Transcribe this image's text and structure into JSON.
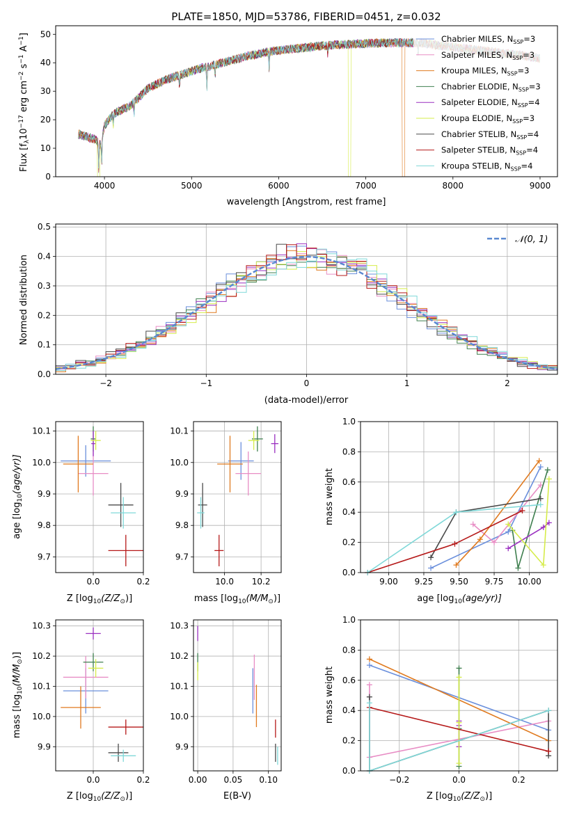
{
  "colors": {
    "chab_miles": "#6a8fdc",
    "salp_miles": "#e88dc5",
    "krou_miles": "#e07a1f",
    "chab_elodie": "#3f7f4f",
    "salp_elodie": "#9a2fc0",
    "krou_elodie": "#d6ec4a",
    "chab_stelib": "#4a4a4a",
    "salp_stelib": "#b51818",
    "krou_stelib": "#7fd8d8",
    "gauss": "#5a88d0",
    "grid": "#b0b0b0"
  },
  "chart_data": [
    {
      "id": "spectrum",
      "type": "line",
      "title": "PLATE=1850, MJD=53786, FIBERID=0451, z=0.032",
      "xlabel": "wavelength [Angstrom, rest frame]",
      "ylabel": "Flux [f",
      "ylabel_sub": "λ",
      "ylabel_rest": "10",
      "ylabel_sup1": "−17",
      "ylabel_tail": " erg cm",
      "ylabel_sup2": "−2",
      "ylabel_tail2": " s",
      "ylabel_sup3": "−1",
      "ylabel_tail3": " A",
      "ylabel_sup4": "−1",
      "ylabel_end": "]",
      "xlim": [
        3440,
        9200
      ],
      "ylim": [
        0,
        53
      ],
      "xticks": [
        4000,
        5000,
        6000,
        7000,
        8000,
        9000
      ],
      "yticks": [
        0,
        10,
        20,
        30,
        40,
        50
      ],
      "grid": false,
      "legend_position": "upper-right",
      "continuum": [
        [
          3700,
          15
        ],
        [
          3900,
          13
        ],
        [
          3960,
          11
        ],
        [
          4000,
          18
        ],
        [
          4100,
          22
        ],
        [
          4300,
          25
        ],
        [
          4500,
          31
        ],
        [
          4700,
          34
        ],
        [
          4900,
          36
        ],
        [
          5100,
          38
        ],
        [
          5300,
          39.5
        ],
        [
          5600,
          42
        ],
        [
          5900,
          44
        ],
        [
          6200,
          45
        ],
        [
          6500,
          46
        ],
        [
          6800,
          46.5
        ],
        [
          7200,
          47
        ],
        [
          7600,
          47
        ],
        [
          8000,
          45.5
        ],
        [
          8400,
          44
        ],
        [
          8800,
          42.5
        ],
        [
          9000,
          41.5
        ]
      ],
      "series": [
        {
          "name": "Chabrier MILES, N",
          "sub": "SSP",
          "n": "=3",
          "color_key": "chab_miles"
        },
        {
          "name": "Salpeter MILES, N",
          "sub": "SSP",
          "n": "=3",
          "color_key": "salp_miles"
        },
        {
          "name": "Kroupa MILES, N",
          "sub": "SSP",
          "n": "=3",
          "color_key": "krou_miles"
        },
        {
          "name": "Chabrier ELODIE, N",
          "sub": "SSP",
          "n": "=3",
          "color_key": "chab_elodie"
        },
        {
          "name": "Salpeter ELODIE, N",
          "sub": "SSP",
          "n": "=4",
          "color_key": "salp_elodie"
        },
        {
          "name": "Kroupa ELODIE, N",
          "sub": "SSP",
          "n": "=3",
          "color_key": "krou_elodie"
        },
        {
          "name": "Chabrier STELIB, N",
          "sub": "SSP",
          "n": "=4",
          "color_key": "chab_stelib"
        },
        {
          "name": "Salpeter STELIB, N",
          "sub": "SSP",
          "n": "=4",
          "color_key": "salp_stelib"
        },
        {
          "name": "Kroupa STELIB, N",
          "sub": "SSP",
          "n": "=4",
          "color_key": "krou_stelib"
        }
      ],
      "dropouts": [
        {
          "color_key": "krou_elodie",
          "x": 6800
        },
        {
          "color_key": "krou_miles",
          "x": 7420
        },
        {
          "color_key": "krou_elodie",
          "x": 3920
        }
      ]
    },
    {
      "id": "residuals",
      "type": "histogram",
      "xlabel": "(data-model)/error",
      "ylabel": "Normed distribution",
      "xlim": [
        -2.5,
        2.5
      ],
      "ylim": [
        0,
        0.51
      ],
      "xticks": [
        -2,
        -1,
        0,
        1,
        2
      ],
      "xticklabels": [
        "−2",
        "−1",
        "0",
        "1",
        "2"
      ],
      "yticks": [
        0.0,
        0.1,
        0.2,
        0.3,
        0.4,
        0.5
      ],
      "yticklabels": [
        "0.0",
        "0.1",
        "0.2",
        "0.3",
        "0.4",
        "0.5"
      ],
      "grid": true,
      "bin_width": 0.1,
      "legend_label": "𝒩(0, 1)",
      "legend_position": "upper-right",
      "gauss_color_key": "gauss"
    },
    {
      "id": "age_vs_Z",
      "type": "errorbar",
      "xlabel": "Z [log",
      "xlabel_sub": "10",
      "xlabel_rest": "(Z/Z",
      "xlabel_sub2": "⊙",
      "xlabel_end": ")]",
      "ylabel": "age  [log",
      "ylabel_sub": "10",
      "ylabel_rest": "(age/yr)]",
      "xlim": [
        -0.15,
        0.2
      ],
      "ylim": [
        9.65,
        10.13
      ],
      "xticks": [
        0.0,
        0.2
      ],
      "xticklabels": [
        "0.0",
        "0.2"
      ],
      "yticks": [
        9.7,
        9.8,
        9.9,
        10.0,
        10.1
      ],
      "yticklabels": [
        "9.7",
        "9.8",
        "9.9",
        "10.0",
        "10.1"
      ],
      "grid": true,
      "points": [
        {
          "color_key": "chab_miles",
          "x": -0.03,
          "xerr": 0.1,
          "y": 10.005,
          "yerr": 0.05
        },
        {
          "color_key": "salp_miles",
          "x": 0.0,
          "xerr": 0.06,
          "y": 9.965,
          "yerr": 0.07
        },
        {
          "color_key": "krou_miles",
          "x": -0.06,
          "xerr": 0.06,
          "y": 9.995,
          "yerr": 0.09
        },
        {
          "color_key": "chab_elodie",
          "x": 0.0,
          "xerr": 0.01,
          "y": 10.075,
          "yerr": 0.04
        },
        {
          "color_key": "salp_elodie",
          "x": 0.0,
          "xerr": 0.008,
          "y": 10.06,
          "yerr": 0.04
        },
        {
          "color_key": "krou_elodie",
          "x": 0.01,
          "xerr": 0.02,
          "y": 10.07,
          "yerr": 0.03
        },
        {
          "color_key": "chab_stelib",
          "x": 0.11,
          "xerr": 0.05,
          "y": 9.865,
          "yerr": 0.07
        },
        {
          "color_key": "salp_stelib",
          "x": 0.13,
          "xerr": 0.07,
          "y": 9.72,
          "yerr": 0.05
        },
        {
          "color_key": "krou_stelib",
          "x": 0.12,
          "xerr": 0.05,
          "y": 9.84,
          "yerr": 0.05
        }
      ]
    },
    {
      "id": "age_vs_mass",
      "type": "errorbar",
      "xlabel": "mass [log",
      "xlabel_sub": "10",
      "xlabel_rest": "(M/M",
      "xlabel_sub2": "⊙",
      "xlabel_end": ")]",
      "xlim": [
        9.83,
        10.31
      ],
      "ylim": [
        9.65,
        10.13
      ],
      "xticks": [
        10.0,
        10.2
      ],
      "xticklabels": [
        "10.0",
        "10.2"
      ],
      "yticks": [
        9.7,
        9.8,
        9.9,
        10.0,
        10.1
      ],
      "yticklabels": [
        "9.7",
        "9.8",
        "9.9",
        "10.0",
        "10.1"
      ],
      "grid": true,
      "points": [
        {
          "color_key": "chab_miles",
          "x": 10.09,
          "xerr": 0.07,
          "y": 10.005,
          "yerr": 0.06
        },
        {
          "color_key": "salp_miles",
          "x": 10.13,
          "xerr": 0.07,
          "y": 9.965,
          "yerr": 0.07
        },
        {
          "color_key": "krou_miles",
          "x": 10.03,
          "xerr": 0.07,
          "y": 9.995,
          "yerr": 0.09
        },
        {
          "color_key": "chab_elodie",
          "x": 10.18,
          "xerr": 0.03,
          "y": 10.075,
          "yerr": 0.04
        },
        {
          "color_key": "salp_elodie",
          "x": 10.275,
          "xerr": 0.02,
          "y": 10.06,
          "yerr": 0.03
        },
        {
          "color_key": "krou_elodie",
          "x": 10.16,
          "xerr": 0.03,
          "y": 10.07,
          "yerr": 0.03
        },
        {
          "color_key": "chab_stelib",
          "x": 9.88,
          "xerr": 0.025,
          "y": 9.865,
          "yerr": 0.07
        },
        {
          "color_key": "salp_stelib",
          "x": 9.97,
          "xerr": 0.025,
          "y": 9.72,
          "yerr": 0.05
        },
        {
          "color_key": "krou_stelib",
          "x": 9.87,
          "xerr": 0.02,
          "y": 9.84,
          "yerr": 0.05
        }
      ]
    },
    {
      "id": "massweight_vs_age",
      "type": "line",
      "xlabel": "age  [log",
      "xlabel_sub": "10",
      "xlabel_rest": "(age/yr)]",
      "ylabel": "mass weight",
      "xlim": [
        8.8,
        10.2
      ],
      "ylim": [
        0,
        1.0
      ],
      "xticks": [
        9.0,
        9.25,
        9.5,
        9.75,
        10.0
      ],
      "xticklabels": [
        "9.00",
        "9.25",
        "9.50",
        "9.75",
        "10.00"
      ],
      "yticks": [
        0.0,
        0.2,
        0.4,
        0.6,
        0.8,
        1.0
      ],
      "yticklabels": [
        "0.0",
        "0.2",
        "0.4",
        "0.6",
        "0.8",
        "1.0"
      ],
      "grid": true,
      "series": [
        {
          "color_key": "chab_miles",
          "x": [
            9.3,
            9.85,
            10.08
          ],
          "y": [
            0.03,
            0.27,
            0.7
          ]
        },
        {
          "color_key": "salp_miles",
          "x": [
            9.6,
            9.75,
            10.08
          ],
          "y": [
            0.32,
            0.2,
            0.58
          ]
        },
        {
          "color_key": "krou_miles",
          "x": [
            9.48,
            9.65,
            10.07
          ],
          "y": [
            0.05,
            0.22,
            0.74
          ]
        },
        {
          "color_key": "chab_elodie",
          "x": [
            9.88,
            9.92,
            10.13
          ],
          "y": [
            0.28,
            0.03,
            0.68
          ]
        },
        {
          "color_key": "salp_elodie",
          "x": [
            9.85,
            10.1,
            10.14
          ],
          "y": [
            0.16,
            0.3,
            0.33
          ]
        },
        {
          "color_key": "krou_elodie",
          "x": [
            9.85,
            10.1,
            10.14
          ],
          "y": [
            0.32,
            0.05,
            0.62
          ]
        },
        {
          "color_key": "chab_stelib",
          "x": [
            9.3,
            9.48,
            10.08
          ],
          "y": [
            0.1,
            0.4,
            0.49
          ]
        },
        {
          "color_key": "salp_stelib",
          "x": [
            8.85,
            9.47,
            9.95
          ],
          "y": [
            0.0,
            0.19,
            0.41
          ]
        },
        {
          "color_key": "krou_stelib",
          "x": [
            8.85,
            9.48,
            10.08
          ],
          "y": [
            0.0,
            0.4,
            0.45
          ]
        }
      ]
    },
    {
      "id": "mass_vs_Z",
      "type": "errorbar",
      "xlabel": "Z [log",
      "xlabel_sub": "10",
      "xlabel_rest": "(Z/Z",
      "xlabel_sub2": "⊙",
      "xlabel_end": ")]",
      "ylabel": "mass [log",
      "ylabel_sub": "10",
      "ylabel_rest": "(M/M",
      "ylabel_sub2": "⊙",
      "ylabel_end": ")]",
      "xlim": [
        -0.15,
        0.2
      ],
      "ylim": [
        9.82,
        10.32
      ],
      "xticks": [
        0.0,
        0.2
      ],
      "xticklabels": [
        "0.0",
        "0.2"
      ],
      "yticks": [
        9.9,
        10.0,
        10.1,
        10.2,
        10.3
      ],
      "yticklabels": [
        "9.9",
        "10.0",
        "10.1",
        "10.2",
        "10.3"
      ],
      "grid": true,
      "points": [
        {
          "color_key": "chab_miles",
          "x": -0.03,
          "xerr": 0.09,
          "y": 10.085,
          "yerr": 0.075
        },
        {
          "color_key": "salp_miles",
          "x": -0.03,
          "xerr": 0.09,
          "y": 10.13,
          "yerr": 0.07
        },
        {
          "color_key": "krou_miles",
          "x": -0.05,
          "xerr": 0.08,
          "y": 10.03,
          "yerr": 0.07
        },
        {
          "color_key": "chab_elodie",
          "x": 0.0,
          "xerr": 0.04,
          "y": 10.18,
          "yerr": 0.03
        },
        {
          "color_key": "salp_elodie",
          "x": 0.0,
          "xerr": 0.03,
          "y": 10.275,
          "yerr": 0.02
        },
        {
          "color_key": "krou_elodie",
          "x": 0.01,
          "xerr": 0.03,
          "y": 10.16,
          "yerr": 0.03
        },
        {
          "color_key": "chab_stelib",
          "x": 0.1,
          "xerr": 0.04,
          "y": 9.88,
          "yerr": 0.03
        },
        {
          "color_key": "salp_stelib",
          "x": 0.13,
          "xerr": 0.07,
          "y": 9.965,
          "yerr": 0.025
        },
        {
          "color_key": "krou_stelib",
          "x": 0.12,
          "xerr": 0.05,
          "y": 9.87,
          "yerr": 0.02
        }
      ]
    },
    {
      "id": "mass_vs_ebv",
      "type": "errorbar",
      "xlabel": "E(B-V)",
      "xlim": [
        -0.006,
        0.118
      ],
      "ylim": [
        9.82,
        10.32
      ],
      "xticks": [
        0.0,
        0.05,
        0.1
      ],
      "xticklabels": [
        "0.00",
        "0.05",
        "0.10"
      ],
      "yticks": [
        9.9,
        10.0,
        10.1,
        10.2,
        10.3
      ],
      "yticklabels": [
        "9.9",
        "10.0",
        "10.1",
        "10.2",
        "10.3"
      ],
      "grid": true,
      "points": [
        {
          "color_key": "chab_miles",
          "x": 0.078,
          "xerr": 0.0,
          "y": 10.085,
          "yerr": 0.075
        },
        {
          "color_key": "salp_miles",
          "x": 0.08,
          "xerr": 0.0,
          "y": 10.13,
          "yerr": 0.075
        },
        {
          "color_key": "krou_miles",
          "x": 0.083,
          "xerr": 0.0,
          "y": 10.035,
          "yerr": 0.07
        },
        {
          "color_key": "chab_elodie",
          "x": 0.0,
          "xerr": 0.0,
          "y": 10.18,
          "yerr": 0.03
        },
        {
          "color_key": "salp_elodie",
          "x": 0.0,
          "xerr": 0.0,
          "y": 10.275,
          "yerr": 0.025
        },
        {
          "color_key": "krou_elodie",
          "x": 0.0,
          "xerr": 0.0,
          "y": 10.15,
          "yerr": 0.03
        },
        {
          "color_key": "chab_stelib",
          "x": 0.11,
          "xerr": 0.0,
          "y": 9.88,
          "yerr": 0.03
        },
        {
          "color_key": "salp_stelib",
          "x": 0.11,
          "xerr": 0.0,
          "y": 9.96,
          "yerr": 0.03
        },
        {
          "color_key": "krou_stelib",
          "x": 0.113,
          "xerr": 0.0,
          "y": 9.87,
          "yerr": 0.03
        }
      ]
    },
    {
      "id": "massweight_vs_Z",
      "type": "line",
      "xlabel": "Z [log",
      "xlabel_sub": "10",
      "xlabel_rest": "(Z/Z",
      "xlabel_sub2": "⊙",
      "xlabel_end": ")]",
      "ylabel": "mass weight",
      "xlim": [
        -0.33,
        0.33
      ],
      "ylim": [
        0,
        1.0
      ],
      "xticks": [
        -0.2,
        0.0,
        0.2
      ],
      "xticklabels": [
        "−0.2",
        "0.0",
        "0.2"
      ],
      "yticks": [
        0.0,
        0.2,
        0.4,
        0.6,
        0.8,
        1.0
      ],
      "yticklabels": [
        "0.0",
        "0.2",
        "0.4",
        "0.6",
        "0.8",
        "1.0"
      ],
      "grid": true,
      "series": [
        {
          "color_key": "chab_miles",
          "x": [
            -0.3,
            0.3
          ],
          "y": [
            0.7,
            0.27
          ]
        },
        {
          "color_key": "salp_miles",
          "x": [
            -0.3,
            -0.3,
            0.3
          ],
          "y": [
            0.57,
            0.09,
            0.33
          ]
        },
        {
          "color_key": "krou_miles",
          "x": [
            -0.3,
            0.3
          ],
          "y": [
            0.74,
            0.2
          ]
        },
        {
          "color_key": "chab_elodie",
          "x": [
            0.0,
            0.0,
            0.0
          ],
          "y": [
            0.68,
            0.03,
            0.28
          ]
        },
        {
          "color_key": "salp_elodie",
          "x": [
            0.0,
            0.0,
            0.0
          ],
          "y": [
            0.33,
            0.16,
            0.3
          ]
        },
        {
          "color_key": "krou_elodie",
          "x": [
            0.0,
            0.0,
            0.0
          ],
          "y": [
            0.62,
            0.05,
            0.32
          ]
        },
        {
          "color_key": "chab_stelib",
          "x": [
            -0.3,
            -0.3,
            0.3,
            0.3
          ],
          "y": [
            0.49,
            0.0,
            0.4,
            0.1
          ]
        },
        {
          "color_key": "salp_stelib",
          "x": [
            -0.3,
            0.3
          ],
          "y": [
            0.42,
            0.13
          ]
        },
        {
          "color_key": "krou_stelib",
          "x": [
            -0.3,
            -0.3,
            0.3
          ],
          "y": [
            0.45,
            0.0,
            0.4
          ]
        }
      ]
    }
  ]
}
